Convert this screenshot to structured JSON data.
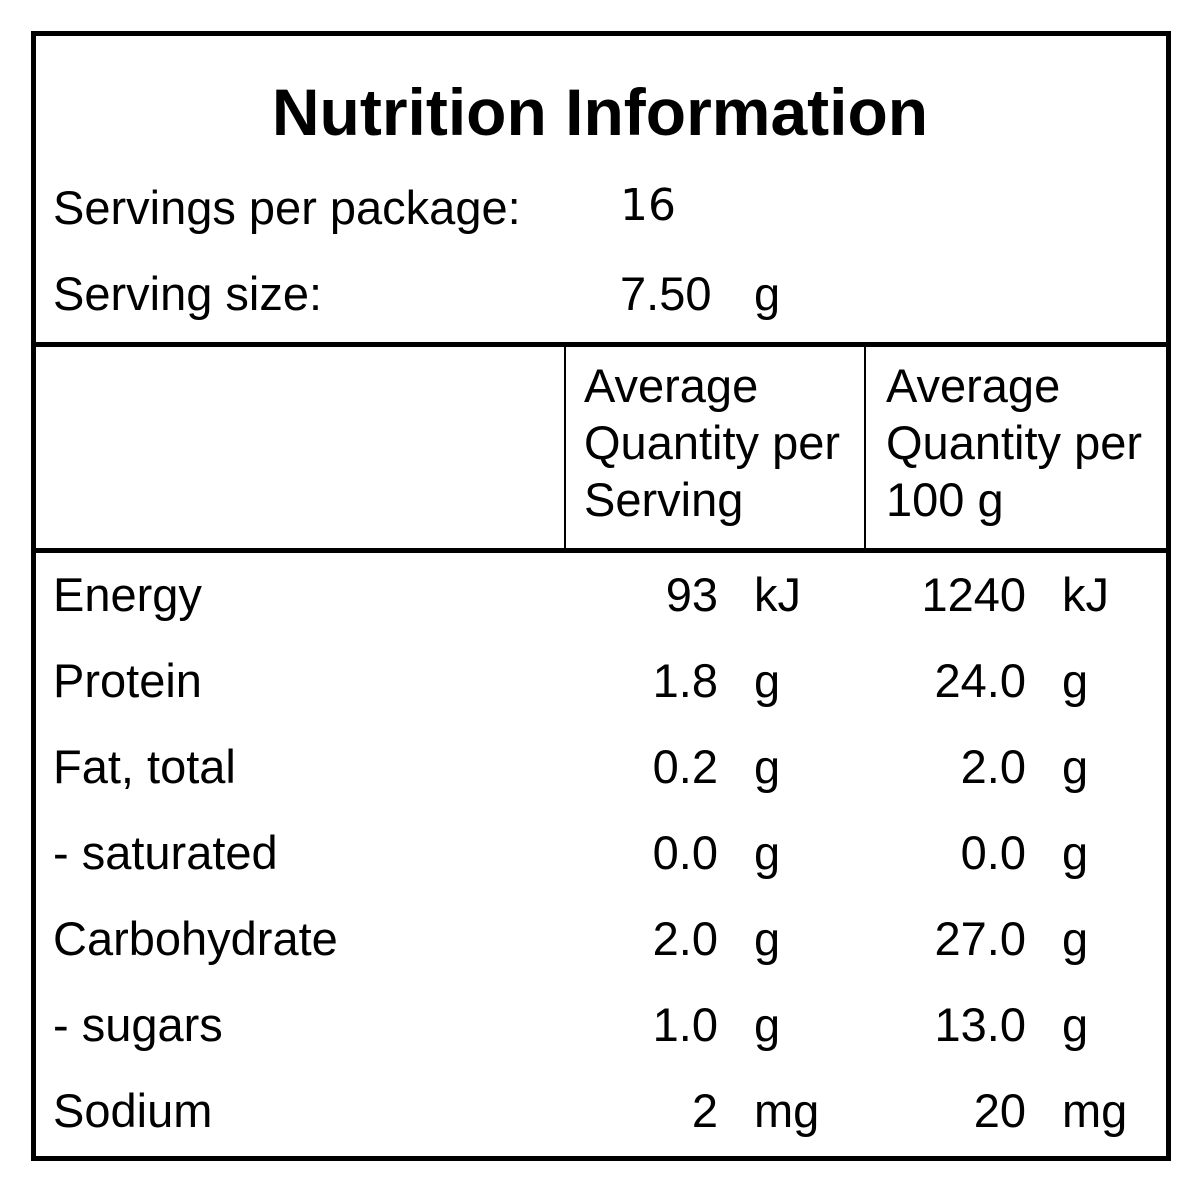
{
  "panel": {
    "title": "Nutrition Information",
    "servings_label": "Servings per package:",
    "servings_value": "16",
    "serving_size_label": "Serving size:",
    "serving_size_value": "7.50",
    "serving_size_unit": "g"
  },
  "columns": {
    "per_serving": [
      "Average",
      "Quantity per",
      "Serving"
    ],
    "per_100g": [
      "Average",
      "Quantity per",
      "100 g"
    ]
  },
  "rows": [
    {
      "label": "Energy",
      "serving": "93",
      "serving_unit": "kJ",
      "per100": "1240",
      "per100_unit": "kJ"
    },
    {
      "label": "Protein",
      "serving": "1.8",
      "serving_unit": "g",
      "per100": "24.0",
      "per100_unit": "g"
    },
    {
      "label": "Fat, total",
      "serving": "0.2",
      "serving_unit": "g",
      "per100": "2.0",
      "per100_unit": "g"
    },
    {
      "label": "- saturated",
      "serving": "0.0",
      "serving_unit": "g",
      "per100": "0.0",
      "per100_unit": "g"
    },
    {
      "label": "Carbohydrate",
      "serving": "2.0",
      "serving_unit": "g",
      "per100": "27.0",
      "per100_unit": "g"
    },
    {
      "label": "- sugars",
      "serving": "1.0",
      "serving_unit": "g",
      "per100": "13.0",
      "per100_unit": "g"
    },
    {
      "label": "Sodium",
      "serving": "2",
      "serving_unit": "mg",
      "per100": "20",
      "per100_unit": "mg"
    }
  ]
}
